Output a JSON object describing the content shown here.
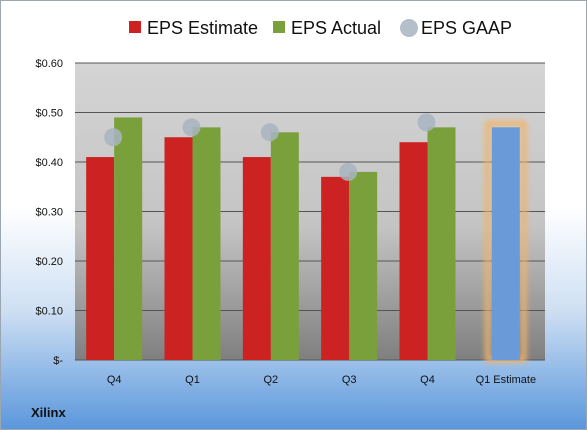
{
  "company": "Xilinx",
  "chart_data": {
    "type": "bar",
    "categories": [
      "Q4",
      "Q1",
      "Q2",
      "Q3",
      "Q4",
      "Q1 Estimate"
    ],
    "series": [
      {
        "name": "EPS Estimate",
        "color": "#cc2222",
        "values": [
          0.41,
          0.45,
          0.41,
          0.37,
          0.44,
          null
        ]
      },
      {
        "name": "EPS Actual",
        "color": "#7aa03c",
        "values": [
          0.49,
          0.47,
          0.46,
          0.38,
          0.47,
          0.47
        ]
      },
      {
        "name": "EPS GAAP",
        "color": "#a8b4c0",
        "values": [
          0.45,
          0.47,
          0.46,
          0.38,
          0.48,
          null
        ]
      }
    ],
    "estimate_bar_color": "#6a9bd8",
    "estimate_glow_color": "#f2b36a",
    "yticks": [
      "$-",
      "$0.10",
      "$0.20",
      "$0.30",
      "$0.40",
      "$0.50",
      "$0.60"
    ],
    "ylim": [
      0,
      0.6
    ],
    "grid": true,
    "legend_position": "top"
  }
}
